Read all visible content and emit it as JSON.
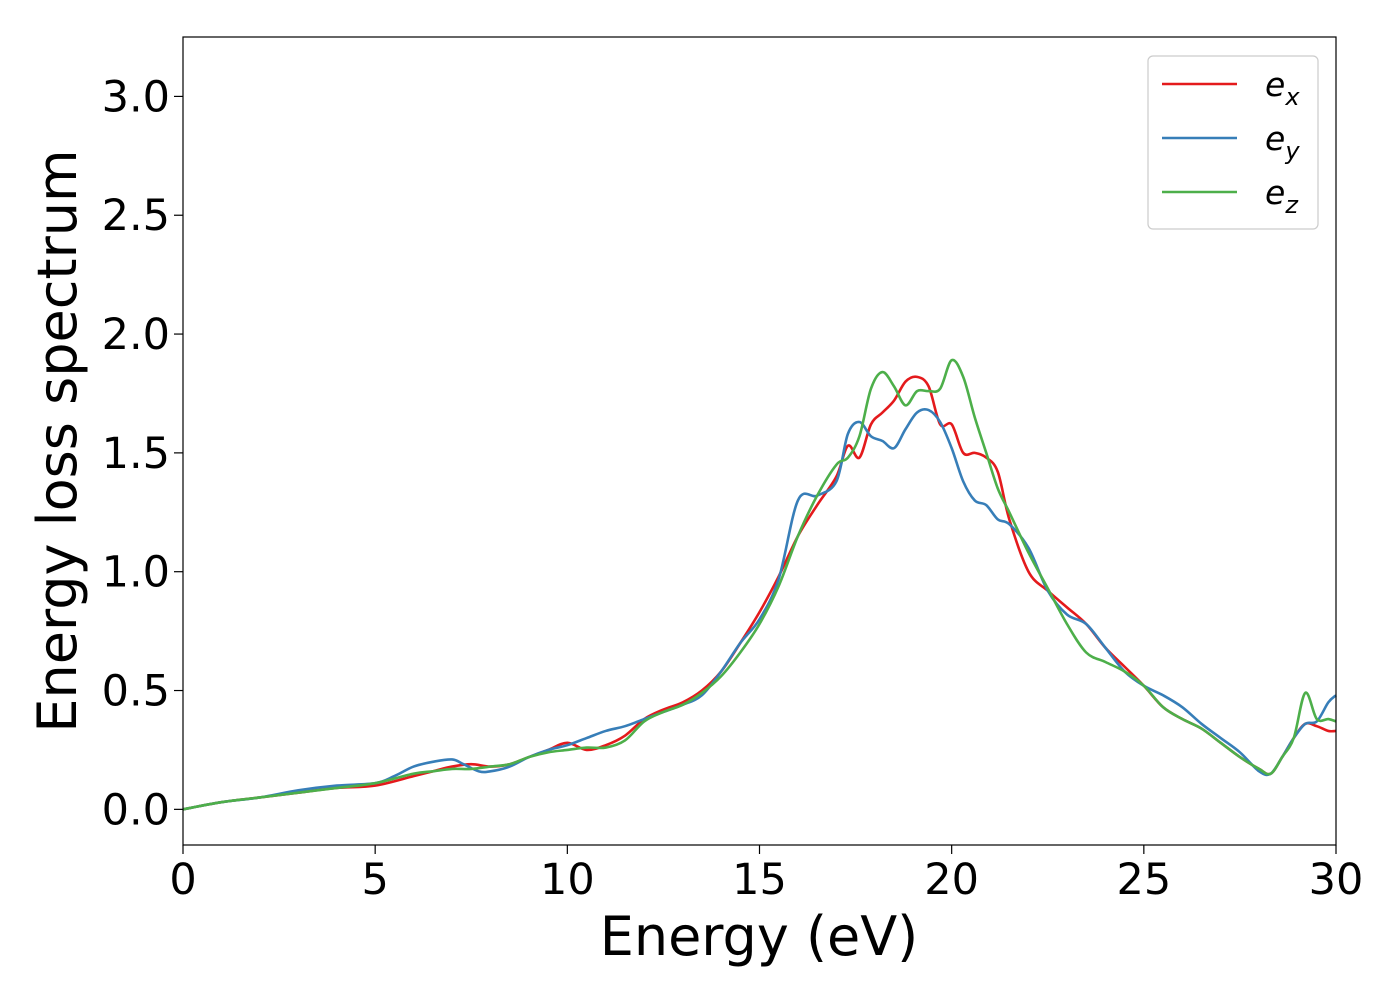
{
  "chart_data": {
    "type": "line",
    "title": "",
    "xlabel": "Energy (eV)",
    "ylabel": "Energy loss spectrum",
    "xlim": [
      0,
      30
    ],
    "ylim": [
      -0.15,
      3.25
    ],
    "xticks": [
      0,
      5,
      10,
      15,
      20,
      25,
      30
    ],
    "xtick_labels": [
      "0",
      "5",
      "10",
      "15",
      "20",
      "25",
      "30"
    ],
    "yticks": [
      0.0,
      0.5,
      1.0,
      1.5,
      2.0,
      2.5,
      3.0
    ],
    "ytick_labels": [
      "0.0",
      "0.5",
      "1.0",
      "1.5",
      "2.0",
      "2.5",
      "3.0"
    ],
    "grid": false,
    "legend_position": "top-right",
    "series": [
      {
        "name": "e_x",
        "label_base": "e",
        "label_sub": "x",
        "color": "#e41a1c",
        "x": [
          0,
          1,
          2,
          3,
          4,
          5,
          6,
          6.5,
          7,
          7.5,
          8,
          8.5,
          9,
          9.5,
          10,
          10.5,
          11,
          11.5,
          12,
          12.5,
          13,
          13.5,
          14,
          14.5,
          15,
          15.5,
          16,
          16.5,
          17,
          17.3,
          17.6,
          17.9,
          18.2,
          18.5,
          18.8,
          19.1,
          19.4,
          19.7,
          20,
          20.3,
          20.6,
          20.9,
          21.2,
          21.5,
          22,
          22.5,
          23,
          23.5,
          24,
          24.5,
          25,
          25.5,
          26,
          26.5,
          27,
          27.5,
          28,
          28.3,
          28.6,
          28.9,
          29.2,
          29.5,
          29.8,
          30
        ],
        "y": [
          0,
          0.03,
          0.05,
          0.07,
          0.09,
          0.1,
          0.14,
          0.16,
          0.18,
          0.19,
          0.18,
          0.19,
          0.22,
          0.25,
          0.28,
          0.25,
          0.27,
          0.31,
          0.38,
          0.42,
          0.45,
          0.5,
          0.58,
          0.7,
          0.83,
          0.98,
          1.15,
          1.28,
          1.4,
          1.53,
          1.48,
          1.62,
          1.67,
          1.72,
          1.8,
          1.82,
          1.78,
          1.62,
          1.62,
          1.5,
          1.5,
          1.48,
          1.42,
          1.22,
          1.0,
          0.92,
          0.85,
          0.78,
          0.68,
          0.6,
          0.52,
          0.43,
          0.38,
          0.34,
          0.28,
          0.22,
          0.17,
          0.15,
          0.22,
          0.3,
          0.36,
          0.35,
          0.33,
          0.33
        ]
      },
      {
        "name": "e_y",
        "label_base": "e",
        "label_sub": "y",
        "color": "#377eb8",
        "x": [
          0,
          1,
          2,
          3,
          4,
          5,
          5.5,
          6,
          6.5,
          7,
          7.3,
          7.7,
          8,
          8.5,
          9,
          9.5,
          10,
          10.5,
          11,
          11.5,
          12,
          12.5,
          13,
          13.5,
          14,
          14.5,
          15,
          15.5,
          16,
          16.5,
          17,
          17.3,
          17.6,
          17.9,
          18.2,
          18.5,
          18.8,
          19.1,
          19.4,
          19.7,
          20,
          20.3,
          20.6,
          20.9,
          21.2,
          21.5,
          22,
          22.5,
          23,
          23.5,
          24,
          24.5,
          25,
          25.5,
          26,
          26.5,
          27,
          27.5,
          28,
          28.3,
          28.6,
          28.9,
          29.2,
          29.5,
          29.8,
          30
        ],
        "y": [
          0,
          0.03,
          0.05,
          0.08,
          0.1,
          0.11,
          0.14,
          0.18,
          0.2,
          0.21,
          0.19,
          0.16,
          0.16,
          0.18,
          0.22,
          0.25,
          0.27,
          0.3,
          0.33,
          0.35,
          0.38,
          0.41,
          0.44,
          0.48,
          0.58,
          0.7,
          0.8,
          0.97,
          1.3,
          1.32,
          1.38,
          1.58,
          1.63,
          1.57,
          1.55,
          1.52,
          1.6,
          1.67,
          1.68,
          1.63,
          1.52,
          1.38,
          1.3,
          1.28,
          1.22,
          1.2,
          1.1,
          0.92,
          0.82,
          0.78,
          0.68,
          0.58,
          0.52,
          0.48,
          0.43,
          0.36,
          0.3,
          0.24,
          0.16,
          0.15,
          0.22,
          0.3,
          0.36,
          0.37,
          0.45,
          0.48
        ]
      },
      {
        "name": "e_z",
        "label_base": "e",
        "label_sub": "z",
        "color": "#4daf4a",
        "x": [
          0,
          1,
          2,
          3,
          4,
          5,
          6,
          6.5,
          7,
          7.5,
          8,
          8.5,
          9,
          9.5,
          10,
          10.5,
          11,
          11.5,
          12,
          12.5,
          13,
          13.5,
          14,
          14.5,
          15,
          15.5,
          16,
          16.5,
          17,
          17.3,
          17.6,
          17.9,
          18.2,
          18.5,
          18.8,
          19.1,
          19.4,
          19.7,
          20,
          20.3,
          20.6,
          20.9,
          21.2,
          21.5,
          22,
          22.5,
          23,
          23.5,
          24,
          24.5,
          25,
          25.5,
          26,
          26.5,
          27,
          27.5,
          28,
          28.3,
          28.6,
          28.9,
          29.2,
          29.5,
          29.8,
          30
        ],
        "y": [
          0,
          0.03,
          0.05,
          0.07,
          0.09,
          0.11,
          0.15,
          0.16,
          0.17,
          0.17,
          0.18,
          0.19,
          0.22,
          0.24,
          0.25,
          0.26,
          0.26,
          0.29,
          0.37,
          0.41,
          0.44,
          0.49,
          0.56,
          0.66,
          0.78,
          0.94,
          1.15,
          1.32,
          1.45,
          1.48,
          1.57,
          1.77,
          1.84,
          1.78,
          1.7,
          1.76,
          1.76,
          1.77,
          1.89,
          1.82,
          1.65,
          1.5,
          1.35,
          1.25,
          1.08,
          0.93,
          0.78,
          0.66,
          0.62,
          0.58,
          0.52,
          0.43,
          0.38,
          0.34,
          0.28,
          0.22,
          0.17,
          0.15,
          0.22,
          0.3,
          0.49,
          0.38,
          0.38,
          0.37
        ]
      }
    ]
  }
}
